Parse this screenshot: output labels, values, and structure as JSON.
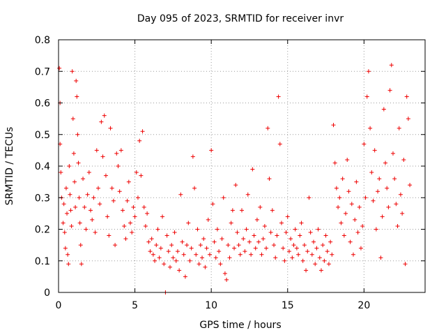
{
  "chart_data": {
    "type": "scatter",
    "title": "Day 095 of 2023, SRMTID for receiver invr",
    "xlabel": "GPS time / hours",
    "ylabel": "SRMTID / TECUs",
    "xlim": [
      0,
      24
    ],
    "ylim": [
      0,
      0.8
    ],
    "xticks": [
      0,
      5,
      10,
      15,
      20
    ],
    "yticks": [
      0,
      0.1,
      0.2,
      0.3,
      0.4,
      0.5,
      0.6,
      0.7,
      0.8
    ],
    "xtick_labels": [
      "0",
      "5",
      "10",
      "15",
      "20"
    ],
    "ytick_labels": [
      "0",
      "0.1",
      "0.2",
      "0.3",
      "0.4",
      "0.5",
      "0.6",
      "0.7",
      "0.8"
    ],
    "grid": true,
    "marker": "plus",
    "color": "#ee0000",
    "series": [
      {
        "name": "SRMTID",
        "points": [
          [
            0.05,
            0.71
          ],
          [
            0.1,
            0.6
          ],
          [
            0.1,
            0.47
          ],
          [
            0.15,
            0.38
          ],
          [
            0.2,
            0.3
          ],
          [
            0.3,
            0.22
          ],
          [
            0.35,
            0.28
          ],
          [
            0.4,
            0.19
          ],
          [
            0.45,
            0.14
          ],
          [
            0.5,
            0.33
          ],
          [
            0.55,
            0.25
          ],
          [
            0.6,
            0.12
          ],
          [
            0.65,
            0.09
          ],
          [
            0.7,
            0.4
          ],
          [
            0.75,
            0.31
          ],
          [
            0.8,
            0.26
          ],
          [
            0.85,
            0.21
          ],
          [
            0.9,
            0.7
          ],
          [
            0.95,
            0.55
          ],
          [
            1.0,
            0.44
          ],
          [
            1.05,
            0.35
          ],
          [
            1.1,
            0.27
          ],
          [
            1.15,
            0.67
          ],
          [
            1.2,
            0.62
          ],
          [
            1.25,
            0.5
          ],
          [
            1.3,
            0.41
          ],
          [
            1.35,
            0.3
          ],
          [
            1.4,
            0.22
          ],
          [
            1.45,
            0.15
          ],
          [
            1.5,
            0.09
          ],
          [
            1.6,
            0.36
          ],
          [
            1.7,
            0.27
          ],
          [
            1.8,
            0.2
          ],
          [
            1.9,
            0.31
          ],
          [
            2.0,
            0.38
          ],
          [
            2.1,
            0.26
          ],
          [
            2.2,
            0.23
          ],
          [
            2.3,
            0.3
          ],
          [
            2.4,
            0.19
          ],
          [
            2.5,
            0.45
          ],
          [
            2.6,
            0.33
          ],
          [
            2.7,
            0.28
          ],
          [
            2.8,
            0.54
          ],
          [
            2.9,
            0.43
          ],
          [
            3.0,
            0.56
          ],
          [
            3.1,
            0.37
          ],
          [
            3.2,
            0.24
          ],
          [
            3.3,
            0.18
          ],
          [
            3.4,
            0.52
          ],
          [
            3.5,
            0.33
          ],
          [
            3.6,
            0.29
          ],
          [
            3.7,
            0.15
          ],
          [
            3.8,
            0.44
          ],
          [
            3.9,
            0.4
          ],
          [
            4.0,
            0.32
          ],
          [
            4.1,
            0.45
          ],
          [
            4.2,
            0.26
          ],
          [
            4.3,
            0.21
          ],
          [
            4.4,
            0.17
          ],
          [
            4.5,
            0.29
          ],
          [
            4.6,
            0.35
          ],
          [
            4.7,
            0.22
          ],
          [
            4.8,
            0.19
          ],
          [
            4.9,
            0.27
          ],
          [
            5.0,
            0.24
          ],
          [
            5.1,
            0.38
          ],
          [
            5.2,
            0.3
          ],
          [
            5.3,
            0.48
          ],
          [
            5.4,
            0.37
          ],
          [
            5.5,
            0.51
          ],
          [
            5.6,
            0.27
          ],
          [
            5.7,
            0.21
          ],
          [
            5.8,
            0.25
          ],
          [
            5.9,
            0.16
          ],
          [
            6.0,
            0.13
          ],
          [
            6.1,
            0.17
          ],
          [
            6.2,
            0.12
          ],
          [
            6.3,
            0.1
          ],
          [
            6.4,
            0.15
          ],
          [
            6.5,
            0.2
          ],
          [
            6.6,
            0.11
          ],
          [
            6.7,
            0.14
          ],
          [
            6.8,
            0.24
          ],
          [
            6.9,
            0.09
          ],
          [
            7.0,
            0.0
          ],
          [
            7.1,
            0.18
          ],
          [
            7.2,
            0.13
          ],
          [
            7.3,
            0.08
          ],
          [
            7.4,
            0.15
          ],
          [
            7.5,
            0.11
          ],
          [
            7.6,
            0.19
          ],
          [
            7.7,
            0.1
          ],
          [
            7.8,
            0.13
          ],
          [
            7.9,
            0.07
          ],
          [
            8.0,
            0.31
          ],
          [
            8.1,
            0.16
          ],
          [
            8.2,
            0.12
          ],
          [
            8.3,
            0.05
          ],
          [
            8.4,
            0.15
          ],
          [
            8.5,
            0.22
          ],
          [
            8.6,
            0.1
          ],
          [
            8.7,
            0.14
          ],
          [
            8.8,
            0.43
          ],
          [
            8.9,
            0.33
          ],
          [
            9.0,
            0.12
          ],
          [
            9.1,
            0.2
          ],
          [
            9.2,
            0.09
          ],
          [
            9.3,
            0.15
          ],
          [
            9.4,
            0.11
          ],
          [
            9.5,
            0.17
          ],
          [
            9.6,
            0.08
          ],
          [
            9.7,
            0.14
          ],
          [
            9.8,
            0.23
          ],
          [
            9.9,
            0.12
          ],
          [
            10.0,
            0.45
          ],
          [
            10.1,
            0.28
          ],
          [
            10.2,
            0.16
          ],
          [
            10.3,
            0.11
          ],
          [
            10.4,
            0.2
          ],
          [
            10.5,
            0.13
          ],
          [
            10.6,
            0.09
          ],
          [
            10.7,
            0.17
          ],
          [
            10.8,
            0.3
          ],
          [
            10.9,
            0.06
          ],
          [
            11.0,
            0.04
          ],
          [
            11.1,
            0.15
          ],
          [
            11.2,
            0.11
          ],
          [
            11.3,
            0.22
          ],
          [
            11.4,
            0.26
          ],
          [
            11.5,
            0.14
          ],
          [
            11.6,
            0.34
          ],
          [
            11.7,
            0.19
          ],
          [
            11.8,
            0.15
          ],
          [
            11.9,
            0.12
          ],
          [
            12.0,
            0.26
          ],
          [
            12.1,
            0.17
          ],
          [
            12.2,
            0.13
          ],
          [
            12.3,
            0.2
          ],
          [
            12.4,
            0.31
          ],
          [
            12.5,
            0.16
          ],
          [
            12.6,
            0.12
          ],
          [
            12.7,
            0.39
          ],
          [
            12.8,
            0.18
          ],
          [
            12.9,
            0.14
          ],
          [
            13.0,
            0.23
          ],
          [
            13.1,
            0.16
          ],
          [
            13.2,
            0.27
          ],
          [
            13.3,
            0.12
          ],
          [
            13.4,
            0.17
          ],
          [
            13.5,
            0.21
          ],
          [
            13.6,
            0.14
          ],
          [
            13.7,
            0.52
          ],
          [
            13.8,
            0.36
          ],
          [
            13.9,
            0.19
          ],
          [
            14.0,
            0.26
          ],
          [
            14.1,
            0.15
          ],
          [
            14.2,
            0.11
          ],
          [
            14.3,
            0.18
          ],
          [
            14.4,
            0.62
          ],
          [
            14.5,
            0.47
          ],
          [
            14.6,
            0.22
          ],
          [
            14.7,
            0.14
          ],
          [
            14.8,
            0.1
          ],
          [
            14.9,
            0.19
          ],
          [
            15.0,
            0.24
          ],
          [
            15.1,
            0.13
          ],
          [
            15.2,
            0.17
          ],
          [
            15.3,
            0.11
          ],
          [
            15.4,
            0.15
          ],
          [
            15.5,
            0.2
          ],
          [
            15.6,
            0.14
          ],
          [
            15.7,
            0.12
          ],
          [
            15.8,
            0.18
          ],
          [
            15.9,
            0.22
          ],
          [
            16.0,
            0.1
          ],
          [
            16.1,
            0.15
          ],
          [
            16.2,
            0.07
          ],
          [
            16.3,
            0.13
          ],
          [
            16.4,
            0.3
          ],
          [
            16.5,
            0.19
          ],
          [
            16.6,
            0.12
          ],
          [
            16.7,
            0.16
          ],
          [
            16.8,
            0.09
          ],
          [
            16.9,
            0.14
          ],
          [
            17.0,
            0.2
          ],
          [
            17.1,
            0.11
          ],
          [
            17.2,
            0.07
          ],
          [
            17.3,
            0.15
          ],
          [
            17.4,
            0.1
          ],
          [
            17.5,
            0.18
          ],
          [
            17.6,
            0.13
          ],
          [
            17.7,
            0.09
          ],
          [
            17.8,
            0.16
          ],
          [
            17.9,
            0.12
          ],
          [
            18.0,
            0.53
          ],
          [
            18.1,
            0.41
          ],
          [
            18.2,
            0.33
          ],
          [
            18.3,
            0.27
          ],
          [
            18.4,
            0.3
          ],
          [
            18.5,
            0.22
          ],
          [
            18.6,
            0.36
          ],
          [
            18.7,
            0.18
          ],
          [
            18.8,
            0.25
          ],
          [
            18.9,
            0.42
          ],
          [
            19.0,
            0.32
          ],
          [
            19.1,
            0.16
          ],
          [
            19.2,
            0.28
          ],
          [
            19.3,
            0.12
          ],
          [
            19.4,
            0.23
          ],
          [
            19.5,
            0.35
          ],
          [
            19.6,
            0.19
          ],
          [
            19.7,
            0.27
          ],
          [
            19.8,
            0.14
          ],
          [
            19.9,
            0.21
          ],
          [
            20.0,
            0.47
          ],
          [
            20.1,
            0.3
          ],
          [
            20.2,
            0.62
          ],
          [
            20.3,
            0.7
          ],
          [
            20.4,
            0.52
          ],
          [
            20.5,
            0.38
          ],
          [
            20.6,
            0.29
          ],
          [
            20.7,
            0.45
          ],
          [
            20.8,
            0.2
          ],
          [
            20.9,
            0.32
          ],
          [
            21.0,
            0.36
          ],
          [
            21.1,
            0.11
          ],
          [
            21.2,
            0.24
          ],
          [
            21.3,
            0.58
          ],
          [
            21.4,
            0.41
          ],
          [
            21.5,
            0.33
          ],
          [
            21.6,
            0.27
          ],
          [
            21.7,
            0.64
          ],
          [
            21.8,
            0.72
          ],
          [
            21.9,
            0.44
          ],
          [
            22.0,
            0.36
          ],
          [
            22.1,
            0.28
          ],
          [
            22.2,
            0.21
          ],
          [
            22.3,
            0.52
          ],
          [
            22.4,
            0.31
          ],
          [
            22.5,
            0.25
          ],
          [
            22.6,
            0.42
          ],
          [
            22.7,
            0.09
          ],
          [
            22.8,
            0.62
          ],
          [
            22.9,
            0.55
          ],
          [
            23.0,
            0.34
          ]
        ]
      }
    ]
  }
}
